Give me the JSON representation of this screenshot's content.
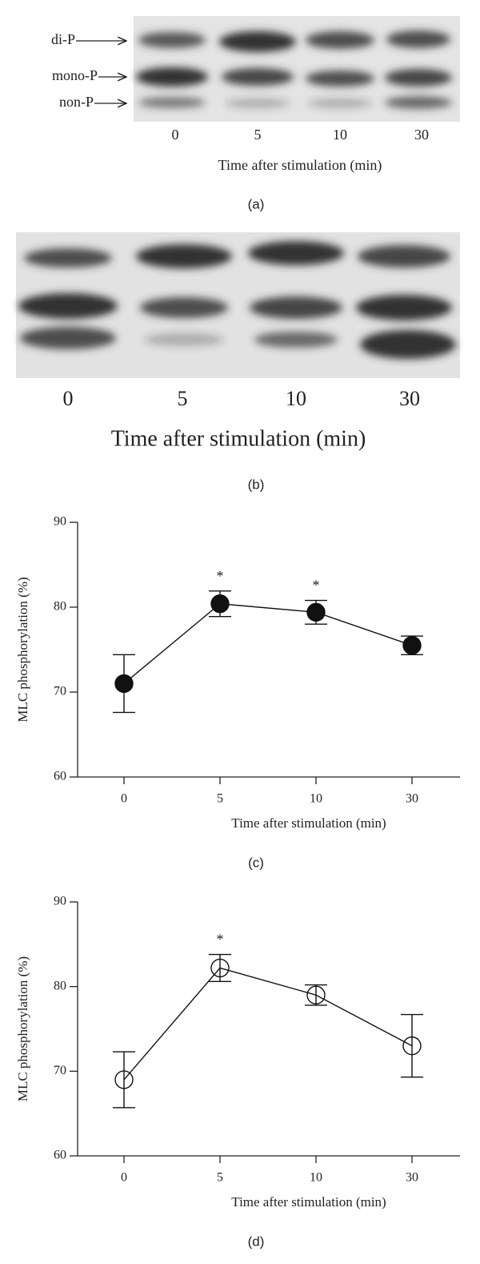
{
  "blots": [
    {
      "band_labels": [
        "di-P",
        "mono-P",
        "non-P"
      ],
      "lanes": [
        "0",
        "5",
        "10",
        "30"
      ],
      "xlabel": "Time after stimulation (min)",
      "caption": "(a)"
    },
    {
      "lanes": [
        "0",
        "5",
        "10",
        "30"
      ],
      "xlabel": "Time after stimulation (min)",
      "caption": "(b)"
    }
  ],
  "chart_data": [
    {
      "type": "line",
      "categories": [
        "0",
        "5",
        "10",
        "30"
      ],
      "values": [
        71,
        80.4,
        79.4,
        75.5
      ],
      "errors": [
        3.4,
        1.5,
        1.4,
        1.1
      ],
      "marker": "filled",
      "color": "#111111",
      "ylim": [
        60,
        90
      ],
      "yticks": [
        60,
        70,
        80,
        90
      ],
      "xlabel": "Time after stimulation (min)",
      "ylabel": "MLC phosphorylation (%)",
      "annotations": [
        {
          "x": "5",
          "text": "*"
        },
        {
          "x": "10",
          "text": "*"
        }
      ],
      "caption": "(c)"
    },
    {
      "type": "line",
      "categories": [
        "0",
        "5",
        "10",
        "30"
      ],
      "values": [
        69,
        82.2,
        79,
        73
      ],
      "errors": [
        3.3,
        1.6,
        1.2,
        3.7
      ],
      "marker": "open",
      "color": "#111111",
      "ylim": [
        60,
        90
      ],
      "yticks": [
        60,
        70,
        80,
        90
      ],
      "xlabel": "Time after stimulation (min)",
      "ylabel": "MLC phosphorylation (%)",
      "annotations": [
        {
          "x": "5",
          "text": "*"
        }
      ],
      "caption": "(d)"
    }
  ]
}
